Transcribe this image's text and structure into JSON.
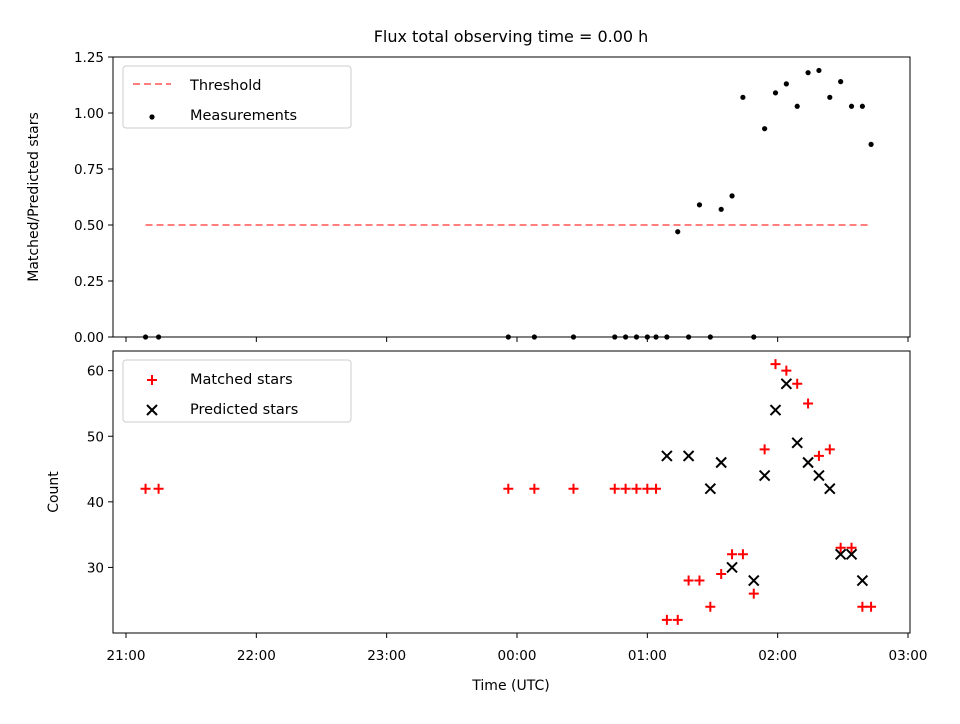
{
  "figure": {
    "title": "Flux total observing time = 0.00 h"
  },
  "chart_data": [
    {
      "type": "scatter",
      "ylabel": "Matched/Predicted stars",
      "xlabel": "",
      "ylim": [
        0,
        1.25
      ],
      "yticks": [
        "0.00",
        "0.25",
        "0.50",
        "0.75",
        "1.00",
        "1.25"
      ],
      "grid": false,
      "legend_position": "upper-left",
      "legend": [
        {
          "label": "Threshold",
          "marker": "dashed-line",
          "color": "#ff7f7f"
        },
        {
          "label": "Measurements",
          "marker": "dot",
          "color": "#000000"
        }
      ],
      "threshold": {
        "name": "Threshold",
        "value": 0.5,
        "x_start": "21:09",
        "x_end": "02:43",
        "color": "#ff7f7f",
        "style": "dashed"
      },
      "series": [
        {
          "name": "Measurements",
          "color": "#000000",
          "marker": "dot",
          "x": [
            "21:09",
            "21:15",
            "23:56",
            "00:08",
            "00:26",
            "00:45",
            "00:50",
            "00:55",
            "01:00",
            "01:04",
            "01:09",
            "01:14",
            "01:19",
            "01:24",
            "01:29",
            "01:34",
            "01:39",
            "01:44",
            "01:49",
            "01:54",
            "01:59",
            "02:04",
            "02:09",
            "02:14",
            "02:19",
            "02:24",
            "02:29",
            "02:34",
            "02:39",
            "02:43"
          ],
          "y": [
            0,
            0,
            0,
            0,
            0,
            0,
            0,
            0,
            0,
            0,
            0,
            0.47,
            0,
            0.59,
            0,
            0.57,
            0.63,
            1.07,
            0,
            0.93,
            1.09,
            1.13,
            1.03,
            1.18,
            1.19,
            1.07,
            1.14,
            1.03,
            1.03,
            0.86
          ]
        }
      ]
    },
    {
      "type": "scatter",
      "ylabel": "Count",
      "xlabel": "Time (UTC)",
      "ylim": [
        20,
        63
      ],
      "yticks": [
        "30",
        "40",
        "50",
        "60"
      ],
      "xlim": [
        "21:00",
        "03:00"
      ],
      "xticks": [
        "21:00",
        "22:00",
        "23:00",
        "00:00",
        "01:00",
        "02:00",
        "03:00"
      ],
      "grid": false,
      "legend_position": "upper-left",
      "legend": [
        {
          "label": "Matched stars",
          "marker": "plus",
          "color": "#ff0000"
        },
        {
          "label": "Predicted stars",
          "marker": "x",
          "color": "#000000"
        }
      ],
      "series": [
        {
          "name": "Matched stars",
          "color": "#ff0000",
          "marker": "plus",
          "x": [
            "21:09",
            "21:15",
            "23:56",
            "00:08",
            "00:26",
            "00:45",
            "00:50",
            "00:55",
            "01:00",
            "01:04",
            "01:09",
            "01:14",
            "01:19",
            "01:24",
            "01:29",
            "01:34",
            "01:39",
            "01:44",
            "01:49",
            "01:54",
            "01:59",
            "02:04",
            "02:09",
            "02:14",
            "02:19",
            "02:24",
            "02:29",
            "02:34",
            "02:39",
            "02:43"
          ],
          "y": [
            42,
            42,
            42,
            42,
            42,
            42,
            42,
            42,
            42,
            42,
            22,
            22,
            28,
            28,
            24,
            29,
            32,
            32,
            26,
            48,
            61,
            60,
            58,
            55,
            47,
            48,
            33,
            33,
            24,
            24
          ]
        },
        {
          "name": "Predicted stars",
          "color": "#000000",
          "marker": "x",
          "x": [
            "01:09",
            "01:19",
            "01:29",
            "01:34",
            "01:39",
            "01:49",
            "01:54",
            "01:59",
            "02:04",
            "02:09",
            "02:14",
            "02:19",
            "02:24",
            "02:29",
            "02:34",
            "02:39"
          ],
          "y": [
            47,
            47,
            42,
            46,
            30,
            28,
            44,
            54,
            58,
            49,
            46,
            44,
            42,
            32,
            32,
            28
          ]
        }
      ]
    }
  ]
}
